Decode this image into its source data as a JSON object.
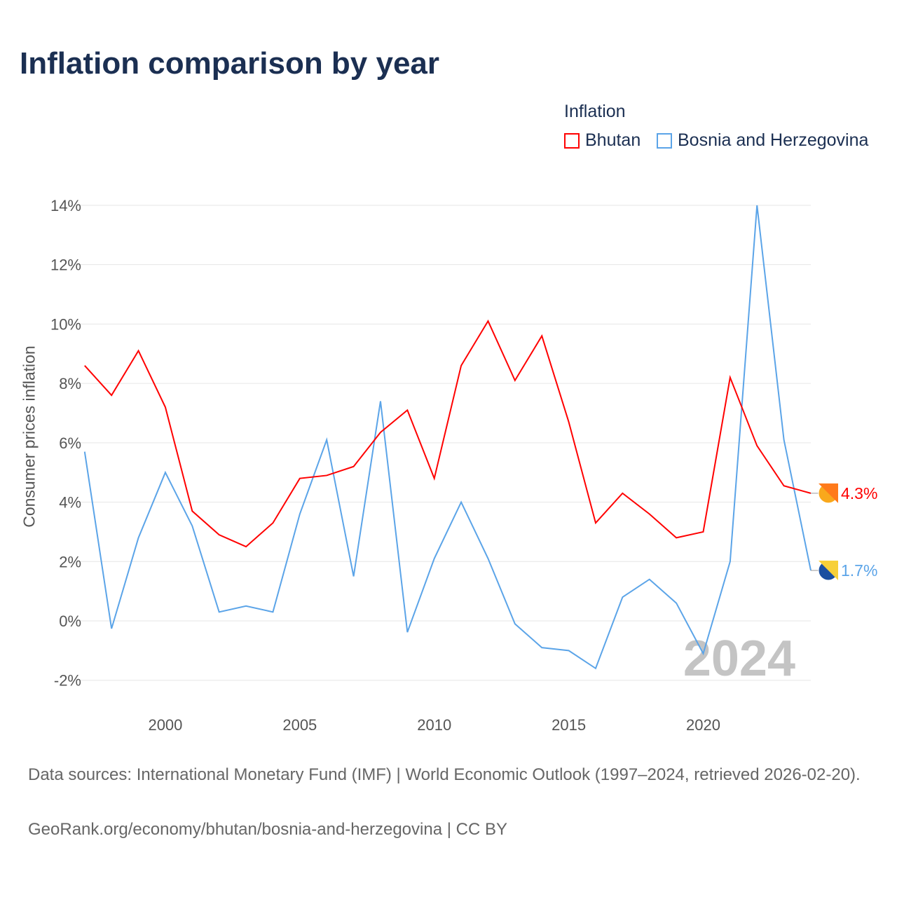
{
  "chart_data": {
    "type": "line",
    "title": "Inflation comparison by year",
    "legend_title": "Inflation",
    "ylabel": "Consumer prices inflation",
    "xlabel": "",
    "ylim": [
      -2,
      14
    ],
    "xlim": [
      1997,
      2024
    ],
    "yticks": [
      -2,
      0,
      2,
      4,
      6,
      8,
      10,
      12,
      14
    ],
    "ytick_labels": [
      "-2%",
      "0%",
      "2%",
      "4%",
      "6%",
      "8%",
      "10%",
      "12%",
      "14%"
    ],
    "xticks": [
      2000,
      2005,
      2010,
      2015,
      2020
    ],
    "xtick_labels": [
      "2000",
      "2005",
      "2010",
      "2015",
      "2020"
    ],
    "year_watermark": "2024",
    "x": [
      1997,
      1998,
      1999,
      2000,
      2001,
      2002,
      2003,
      2004,
      2005,
      2006,
      2007,
      2008,
      2009,
      2010,
      2011,
      2012,
      2013,
      2014,
      2015,
      2016,
      2017,
      2018,
      2019,
      2020,
      2021,
      2022,
      2023,
      2024
    ],
    "series": [
      {
        "name": "Bhutan",
        "color": "#ff0000",
        "end_label": "4.3%",
        "values": [
          8.6,
          7.6,
          9.1,
          7.2,
          3.7,
          2.9,
          2.5,
          3.3,
          4.8,
          4.9,
          5.2,
          6.35,
          7.1,
          4.8,
          8.6,
          10.1,
          8.1,
          9.6,
          6.7,
          3.3,
          4.3,
          3.6,
          2.8,
          3.0,
          8.2,
          5.9,
          4.55,
          4.3
        ]
      },
      {
        "name": "Bosnia and Herzegovina",
        "color": "#5ba4e8",
        "end_label": "1.7%",
        "values": [
          5.7,
          -0.26,
          2.8,
          5.0,
          3.2,
          0.3,
          0.5,
          0.3,
          3.6,
          6.1,
          1.5,
          7.4,
          -0.38,
          2.1,
          4.0,
          2.1,
          -0.1,
          -0.9,
          -1.0,
          -1.6,
          0.8,
          1.4,
          0.6,
          -1.1,
          2.0,
          14.0,
          6.1,
          1.7
        ]
      }
    ]
  },
  "footer": {
    "source": "Data sources: International Monetary Fund (IMF) | World Economic Outlook (1997–2024, retrieved 2026-02-20).",
    "link": "GeoRank.org/economy/bhutan/bosnia-and-herzegovina | CC BY"
  }
}
